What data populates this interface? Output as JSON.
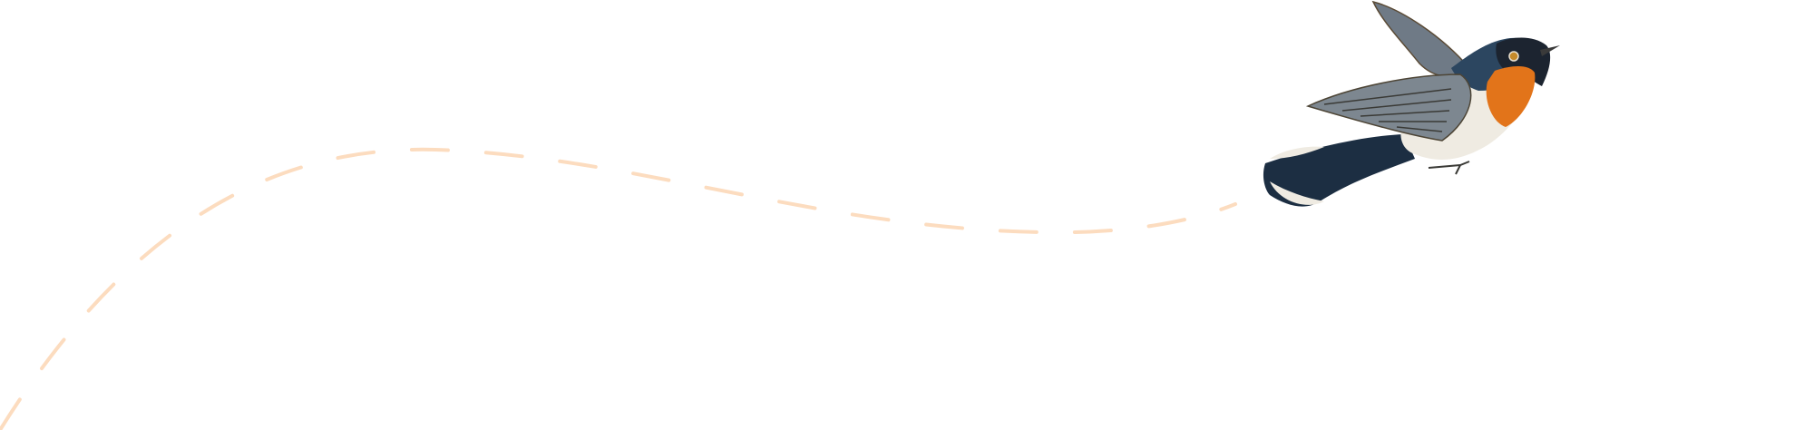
{
  "illustration": {
    "subject": "bird-in-flight",
    "colors": {
      "flight_path": "#fcdcbf",
      "throat": "#e2741a",
      "head": "#1c2430",
      "back": "#2c4660",
      "wing": "#7d8790",
      "belly": "#efebe2"
    }
  }
}
